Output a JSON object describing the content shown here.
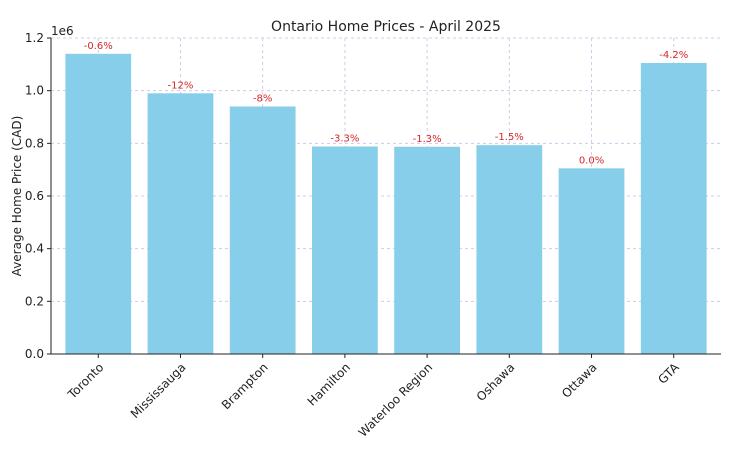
{
  "chart_data": {
    "type": "bar",
    "title": "Ontario Home Prices - April 2025",
    "xlabel": "",
    "ylabel": "Average Home Price (CAD)",
    "y_offset_text": "1e6",
    "ylim": [
      0,
      1200000
    ],
    "y_ticks": [
      "0.0",
      "0.2",
      "0.4",
      "0.6",
      "0.8",
      "1.0",
      "1.2"
    ],
    "y_tick_values": [
      0,
      200000,
      400000,
      600000,
      800000,
      1000000,
      1200000
    ],
    "grid": true,
    "categories": [
      "Toronto",
      "Mississauga",
      "Brampton",
      "Hamilton",
      "Waterloo Region",
      "Oshawa",
      "Ottawa",
      "GTA"
    ],
    "values": [
      1140000,
      990000,
      940000,
      788000,
      787000,
      793000,
      705000,
      1105000
    ],
    "data_labels": [
      "-0.6%",
      "-12%",
      "-8%",
      "-3.3%",
      "-1.3%",
      "-1.5%",
      "0.0%",
      "-4.2%"
    ],
    "bar_color": "#87CEEB",
    "data_label_color": "#d62728"
  }
}
